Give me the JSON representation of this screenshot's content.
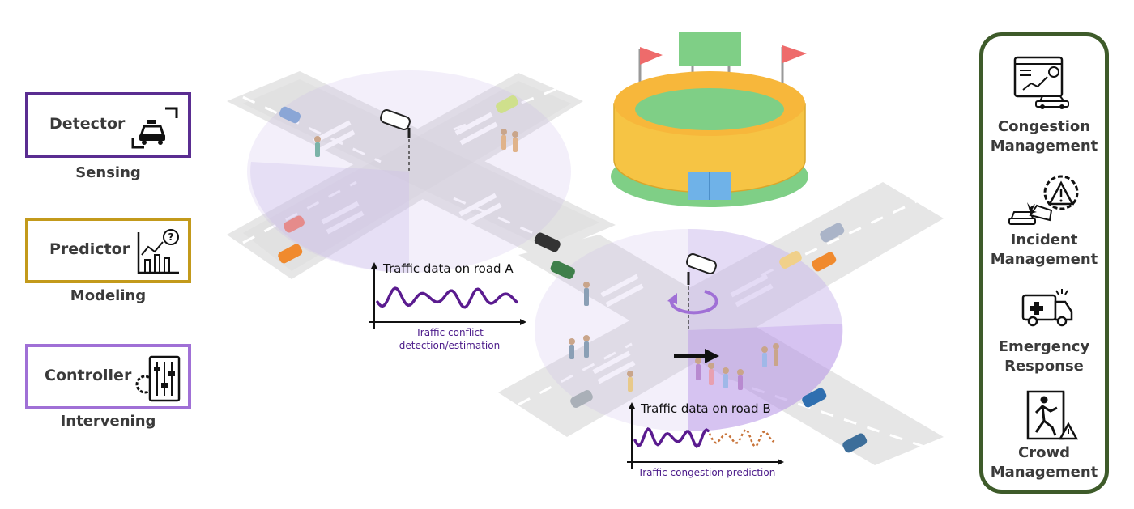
{
  "roles": [
    {
      "id": "detector",
      "box_label": "Detector",
      "caption": "Sensing",
      "color": "#5a2d91",
      "icon": "taxi-scan-icon"
    },
    {
      "id": "predictor",
      "box_label": "Predictor",
      "caption": "Modeling",
      "color": "#c39a1b",
      "icon": "chart-question-icon"
    },
    {
      "id": "controller",
      "box_label": "Controller",
      "caption": "Intervening",
      "color": "#a070d6",
      "icon": "gear-sliders-icon"
    }
  ],
  "road_a": {
    "title": "Traffic data on road A",
    "caption_line1": "Traffic conflict",
    "caption_line2": "detection/estimation",
    "line_color": "#5a1b8f"
  },
  "road_b": {
    "title": "Traffic data on road B",
    "caption": "Traffic congestion prediction",
    "observed_color": "#5a1b8f",
    "predicted_color": "#c8743a"
  },
  "management": [
    {
      "line1": "Congestion",
      "line2": "Management",
      "icon": "dashboard-car-icon"
    },
    {
      "line1": "Incident",
      "line2": "Management",
      "icon": "crash-warning-icon"
    },
    {
      "line1": "Emergency",
      "line2": "Response",
      "icon": "ambulance-icon"
    },
    {
      "line1": "Crowd",
      "line2": "Management",
      "icon": "emergency-exit-icon"
    }
  ],
  "colors": {
    "panel_border": "#3e5b2a",
    "stadium_yellow": "#f6c444",
    "stadium_green": "#7fcf86",
    "flag_red": "#ee6b6b",
    "sensing_zone": "#c9b8ea"
  }
}
